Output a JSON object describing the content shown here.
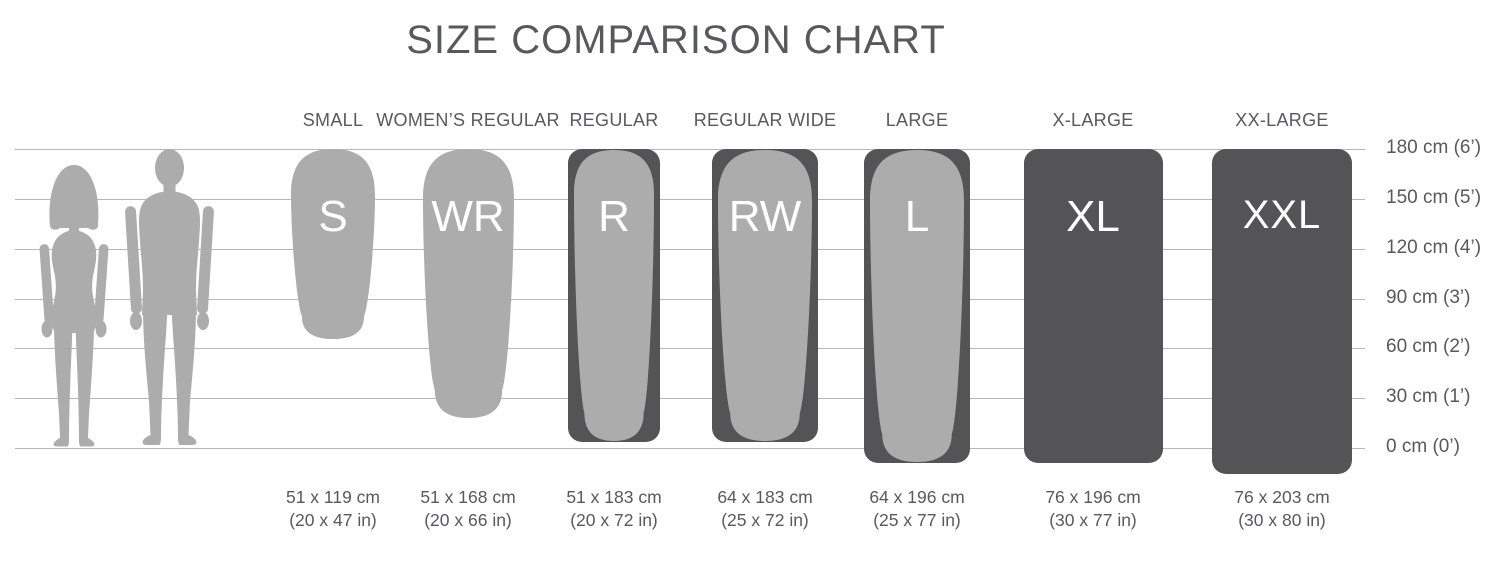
{
  "title": "SIZE COMPARISON CHART",
  "chart_data": {
    "type": "size-comparison",
    "title": "SIZE COMPARISON CHART",
    "scale_ticks": [
      {
        "cm": 180,
        "label": "180 cm (6’)"
      },
      {
        "cm": 150,
        "label": "150 cm (5’)"
      },
      {
        "cm": 120,
        "label": "120 cm (4’)"
      },
      {
        "cm": 90,
        "label": "90 cm (3’)"
      },
      {
        "cm": 60,
        "label": "60 cm (2’)"
      },
      {
        "cm": 30,
        "label": "30 cm (1’)"
      },
      {
        "cm": 0,
        "label": "0 cm (0’)"
      }
    ],
    "sizes": [
      {
        "name": "SMALL",
        "code": "S",
        "width_cm": 51,
        "length_cm": 119,
        "dim_cm": "51 x 119 cm",
        "dim_in": "(20 x 47 in)",
        "style": "pad"
      },
      {
        "name": "WOMEN’S REGULAR",
        "code": "WR",
        "width_cm": 51,
        "length_cm": 168,
        "dim_cm": "51 x 168 cm",
        "dim_in": "(20 x 66 in)",
        "style": "pad"
      },
      {
        "name": "REGULAR",
        "code": "R",
        "width_cm": 51,
        "length_cm": 183,
        "dim_cm": "51 x 183 cm",
        "dim_in": "(20 x 72 in)",
        "style": "pad_on_dark"
      },
      {
        "name": "REGULAR WIDE",
        "code": "RW",
        "width_cm": 64,
        "length_cm": 183,
        "dim_cm": "64 x 183 cm",
        "dim_in": "(25 x 72 in)",
        "style": "pad_on_dark"
      },
      {
        "name": "LARGE",
        "code": "L",
        "width_cm": 64,
        "length_cm": 196,
        "dim_cm": "64 x 196 cm",
        "dim_in": "(25 x 77 in)",
        "style": "pad_on_dark"
      },
      {
        "name": "X-LARGE",
        "code": "XL",
        "width_cm": 76,
        "length_cm": 196,
        "dim_cm": "76 x 196 cm",
        "dim_in": "(30 x 77 in)",
        "style": "dark"
      },
      {
        "name": "XX-LARGE",
        "code": "XXL",
        "width_cm": 76,
        "length_cm": 203,
        "dim_cm": "76 x 203 cm",
        "dim_in": "(30 x 80 in)",
        "style": "dark"
      }
    ],
    "figures": [
      "woman",
      "man"
    ],
    "colors": {
      "light_gray": "#ACACAD",
      "dark_gray": "#545456",
      "text": "#58595B",
      "grid": "#B6B7B9",
      "pad_letter": "#FFFFFF"
    }
  }
}
